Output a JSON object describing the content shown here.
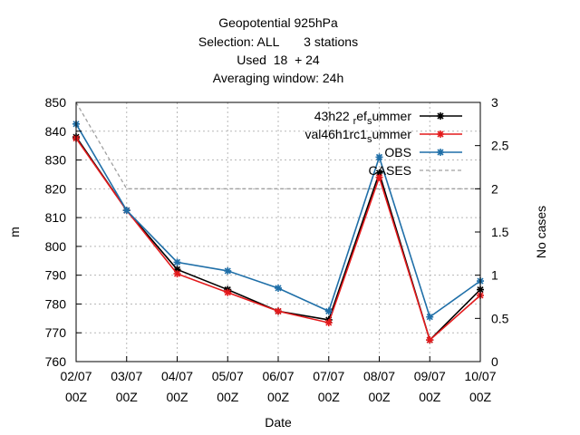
{
  "chart_data": {
    "type": "line",
    "title_lines": [
      "Geopotential 925hPa",
      "Selection: ALL       3 stations",
      "Used  18  + 24",
      "Averaging window: 24h"
    ],
    "xlabel": "Date",
    "ylabel": "m",
    "y2label": "No cases",
    "categories": [
      [
        "02/07",
        "00Z"
      ],
      [
        "03/07",
        "00Z"
      ],
      [
        "04/07",
        "00Z"
      ],
      [
        "05/07",
        "00Z"
      ],
      [
        "06/07",
        "00Z"
      ],
      [
        "07/07",
        "00Z"
      ],
      [
        "08/07",
        "00Z"
      ],
      [
        "09/07",
        "00Z"
      ],
      [
        "10/07",
        "00Z"
      ]
    ],
    "ylim": [
      760,
      850
    ],
    "yticks": [
      760,
      770,
      780,
      790,
      800,
      810,
      820,
      830,
      840,
      850
    ],
    "y2lim": [
      0,
      3
    ],
    "y2ticks": [
      "0",
      "0.5",
      "1",
      "1.5",
      "2",
      "2.5",
      "3"
    ],
    "grid": true,
    "legend_position": "top-right",
    "series": [
      {
        "name": "43h22 ref summer",
        "legend_parts": [
          "43h22 ",
          "r",
          "ef",
          "s",
          "ummer"
        ],
        "axis": "y",
        "color": "#000000",
        "marker": "star",
        "values": [
          838,
          812.5,
          792,
          785,
          777.5,
          774.5,
          825.5,
          767.5,
          785
        ]
      },
      {
        "name": "val46h1rc1 summer",
        "legend_parts": [
          "val46h1rc1",
          "s",
          "ummer"
        ],
        "axis": "y",
        "color": "#e41a1c",
        "marker": "star",
        "values": [
          837.5,
          812.5,
          790.5,
          784,
          777.5,
          773.5,
          824,
          767.5,
          783
        ]
      },
      {
        "name": "OBS",
        "legend_parts": [
          "OBS"
        ],
        "axis": "y",
        "color": "#1f6fa8",
        "marker": "star",
        "values": [
          842.5,
          812.5,
          794.5,
          791.5,
          785.5,
          777.5,
          831,
          775.5,
          788
        ]
      },
      {
        "name": "CASES",
        "legend_parts": [
          "CASES"
        ],
        "axis": "y2",
        "color": "#a0a0a0",
        "dashed": true,
        "values": [
          3,
          2,
          2,
          2,
          2,
          2,
          2,
          2,
          2
        ]
      }
    ]
  }
}
